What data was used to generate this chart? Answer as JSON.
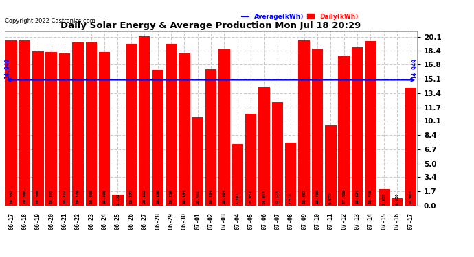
{
  "title": "Daily Solar Energy & Average Production Mon Jul 18 20:29",
  "copyright": "Copyright 2022 Castronics.com",
  "average_label": "Average(kWh)",
  "daily_label": "Daily(kWh)",
  "average_value": 14.949,
  "categories": [
    "06-17",
    "06-18",
    "06-19",
    "06-20",
    "06-21",
    "06-22",
    "06-23",
    "06-24",
    "06-25",
    "06-26",
    "06-27",
    "06-28",
    "06-29",
    "06-30",
    "07-01",
    "07-02",
    "07-03",
    "07-04",
    "07-05",
    "07-06",
    "07-07",
    "07-08",
    "07-09",
    "07-10",
    "07-11",
    "07-12",
    "07-13",
    "07-14",
    "07-15",
    "07-16",
    "07-17"
  ],
  "values": [
    19.652,
    19.668,
    18.368,
    18.312,
    18.112,
    19.376,
    19.488,
    18.296,
    1.272,
    19.272,
    20.112,
    16.18,
    19.236,
    18.144,
    10.492,
    16.204,
    18.584,
    7.302,
    10.952,
    14.08,
    12.328,
    7.516,
    19.652,
    18.7,
    9.572,
    17.88,
    18.824,
    19.616,
    1.952,
    0.936,
    14.0
  ],
  "bar_color": "#FF0000",
  "avg_line_color": "#0000FF",
  "avg_text_color": "#0000FF",
  "bar_text_color": "#000000",
  "background_color": "#FFFFFF",
  "grid_color": "#AAAAAA",
  "title_color": "#000000",
  "yticks": [
    0.0,
    1.7,
    3.4,
    5.0,
    6.7,
    8.4,
    10.1,
    11.7,
    13.4,
    15.1,
    16.8,
    18.4,
    20.1
  ],
  "ylim": [
    0,
    20.8
  ],
  "avg_line_label": "14.949"
}
